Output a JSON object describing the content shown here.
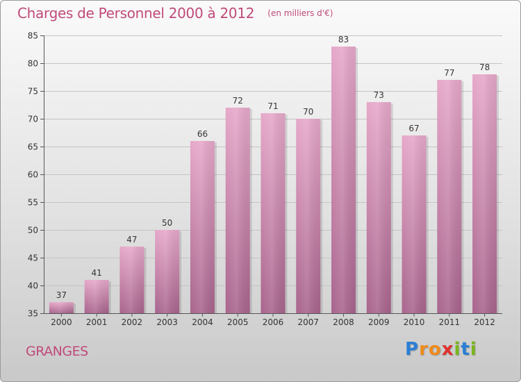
{
  "header": {
    "title": "Charges de Personnel 2000 à 2012",
    "subtitle": "(en milliers d'€)"
  },
  "footer": {
    "commune": "GRANGES",
    "brand": "Proxiti",
    "brand_letters": [
      {
        "char": "P",
        "color": "#2a7fd4"
      },
      {
        "char": "r",
        "color": "#f08a1c"
      },
      {
        "char": "o",
        "color": "#f08a1c"
      },
      {
        "char": "x",
        "color": "#e0322e"
      },
      {
        "char": "i",
        "color": "#7ab51d"
      },
      {
        "char": "t",
        "color": "#2a7fd4"
      },
      {
        "char": "i",
        "color": "#7ab51d"
      }
    ]
  },
  "chart_data": {
    "type": "bar",
    "title": "Charges de Personnel 2000 à 2012",
    "subtitle": "(en milliers d'€)",
    "xlabel": "",
    "ylabel": "",
    "categories": [
      "2000",
      "2001",
      "2002",
      "2003",
      "2004",
      "2005",
      "2006",
      "2007",
      "2008",
      "2009",
      "2010",
      "2011",
      "2012"
    ],
    "values": [
      37,
      41,
      47,
      50,
      66,
      72,
      71,
      70,
      83,
      73,
      67,
      77,
      78
    ],
    "ylim": [
      35,
      85
    ],
    "yticks": [
      35,
      40,
      45,
      50,
      55,
      60,
      65,
      70,
      75,
      80,
      85
    ],
    "grid": true,
    "data_labels": true,
    "bar_color": "#c0648f"
  }
}
